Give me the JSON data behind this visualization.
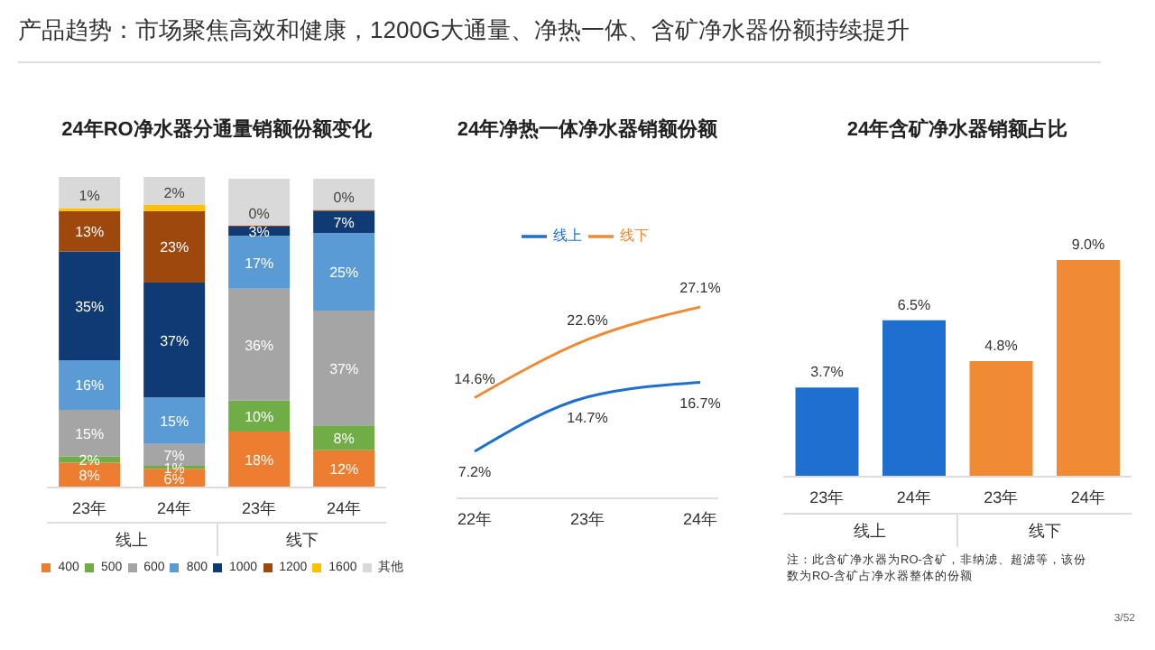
{
  "chart_data": [
    {
      "type": "bar",
      "title": "产品趋势：市场聚焦高效和健康，1200G大通量、净热一体、含矿净水器份额持续提升",
      "subtitle": "24年RO净水器分通量销额份额变化",
      "categories": [
        "23年",
        "24年",
        "23年",
        "24年"
      ],
      "stacked": true,
      "legend": "bottom",
      "tick_labels": "x",
      "series": [
        {
          "name": "400",
          "color": "#ed7d31",
          "values": [
            8,
            6,
            18,
            12
          ],
          "value_labels": [
            "8%",
            "6%",
            "18%",
            "12%"
          ]
        },
        {
          "name": "500",
          "color": "#70ad47",
          "values": [
            2,
            1,
            10,
            8
          ],
          "value_labels": [
            "2%",
            "1%",
            "10%",
            "8%"
          ]
        },
        {
          "name": "600",
          "color": "#a5a5a5",
          "values": [
            15,
            7,
            36,
            37
          ],
          "value_labels": [
            "15%",
            "7%",
            "36%",
            "37%"
          ]
        },
        {
          "name": "800",
          "color": "#5b9bd5",
          "values": [
            16,
            15,
            17,
            25
          ],
          "value_labels": [
            "16%",
            "15%",
            "17%",
            "25%"
          ]
        },
        {
          "name": "1000",
          "color": "#0f3a73",
          "values": [
            35,
            37,
            3,
            7
          ],
          "value_labels": [
            "35%",
            "37%",
            "3%",
            "7%"
          ]
        },
        {
          "name": "1200",
          "color": "#9e480e",
          "values": [
            13,
            23,
            0.4,
            0.4
          ],
          "value_labels": [
            "13%",
            "23%",
            "0%",
            "0%"
          ]
        },
        {
          "name": "1600",
          "color": "#ffc000",
          "values": [
            1,
            2,
            0,
            0
          ],
          "value_labels": [
            "1%",
            "2%",
            null,
            null
          ]
        },
        {
          "name": "其他",
          "color": "#d9d9d9",
          "values": [
            10,
            9,
            15,
            10
          ],
          "value_labels": [
            null,
            null,
            null,
            null
          ]
        }
      ],
      "annotations": [
        "线上",
        "线下"
      ]
    },
    {
      "type": "line",
      "title": "24年净热一体净水器销额份额",
      "categories": [
        "22年",
        "23年",
        "24年"
      ],
      "legend": "top",
      "tick_labels": "x",
      "series": [
        {
          "name": "线上",
          "color": "#1f6fd1",
          "values": [
            7.2,
            14.7,
            16.7
          ],
          "value_labels": [
            "7.2%",
            "14.7%",
            "16.7%"
          ]
        },
        {
          "name": "线下",
          "color": "#f08a35",
          "values": [
            14.6,
            22.6,
            27.1
          ],
          "value_labels": [
            "14.6%",
            "22.6%",
            "27.1%"
          ]
        }
      ]
    },
    {
      "type": "bar",
      "title": "24年含矿净水器销额占比",
      "categories": [
        "23年",
        "24年",
        "23年",
        "24年"
      ],
      "tick_labels": "x",
      "values": [
        3.7,
        6.5,
        4.8,
        9.0
      ],
      "colors": [
        "#1f6fd1",
        "#1f6fd1",
        "#f08a35",
        "#f08a35"
      ],
      "value_labels": [
        "3.7%",
        "6.5%",
        "4.8%",
        "9.0%"
      ],
      "annotations": [
        "线上",
        "线下",
        "注：此含矿净水器为RO-含矿，非纳滤、超滤等，该份数为RO-含矿占净水器整体的份额",
        "3/52"
      ]
    }
  ]
}
